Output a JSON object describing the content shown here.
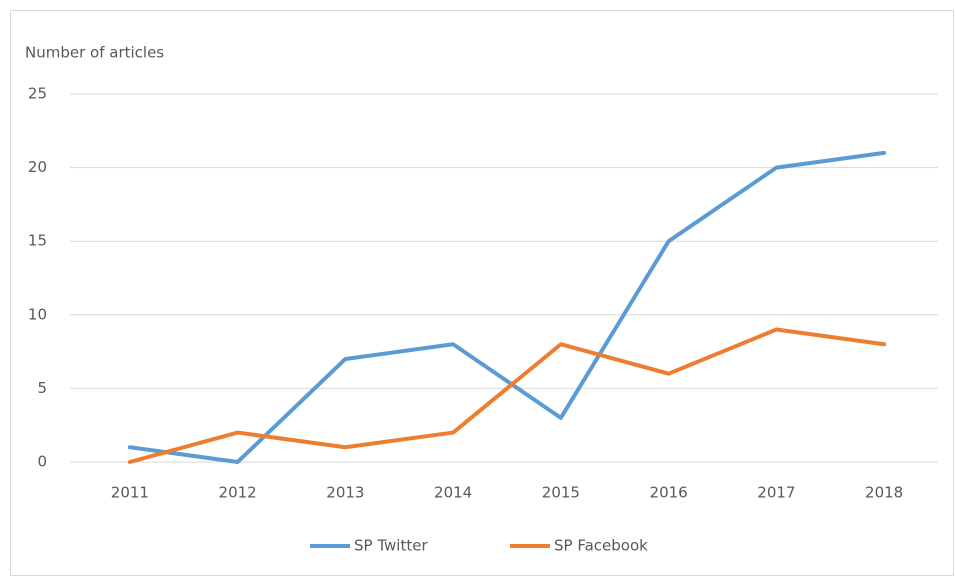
{
  "chart_data": {
    "type": "line",
    "y_axis_label": "Number  of articles",
    "categories": [
      "2011",
      "2012",
      "2013",
      "2014",
      "2015",
      "2016",
      "2017",
      "2018"
    ],
    "series": [
      {
        "name": "SP Twitter",
        "color": "#5b9bd5",
        "values": [
          1,
          0,
          7,
          8,
          3,
          15,
          20,
          21
        ]
      },
      {
        "name": "SP Facebook",
        "color": "#ed7d31",
        "values": [
          0,
          2,
          1,
          2,
          8,
          6,
          9,
          8
        ]
      }
    ],
    "ylim": [
      0,
      25
    ],
    "yticks": [
      0,
      5,
      10,
      15,
      20,
      25
    ],
    "grid": true,
    "legend": "bottom"
  }
}
